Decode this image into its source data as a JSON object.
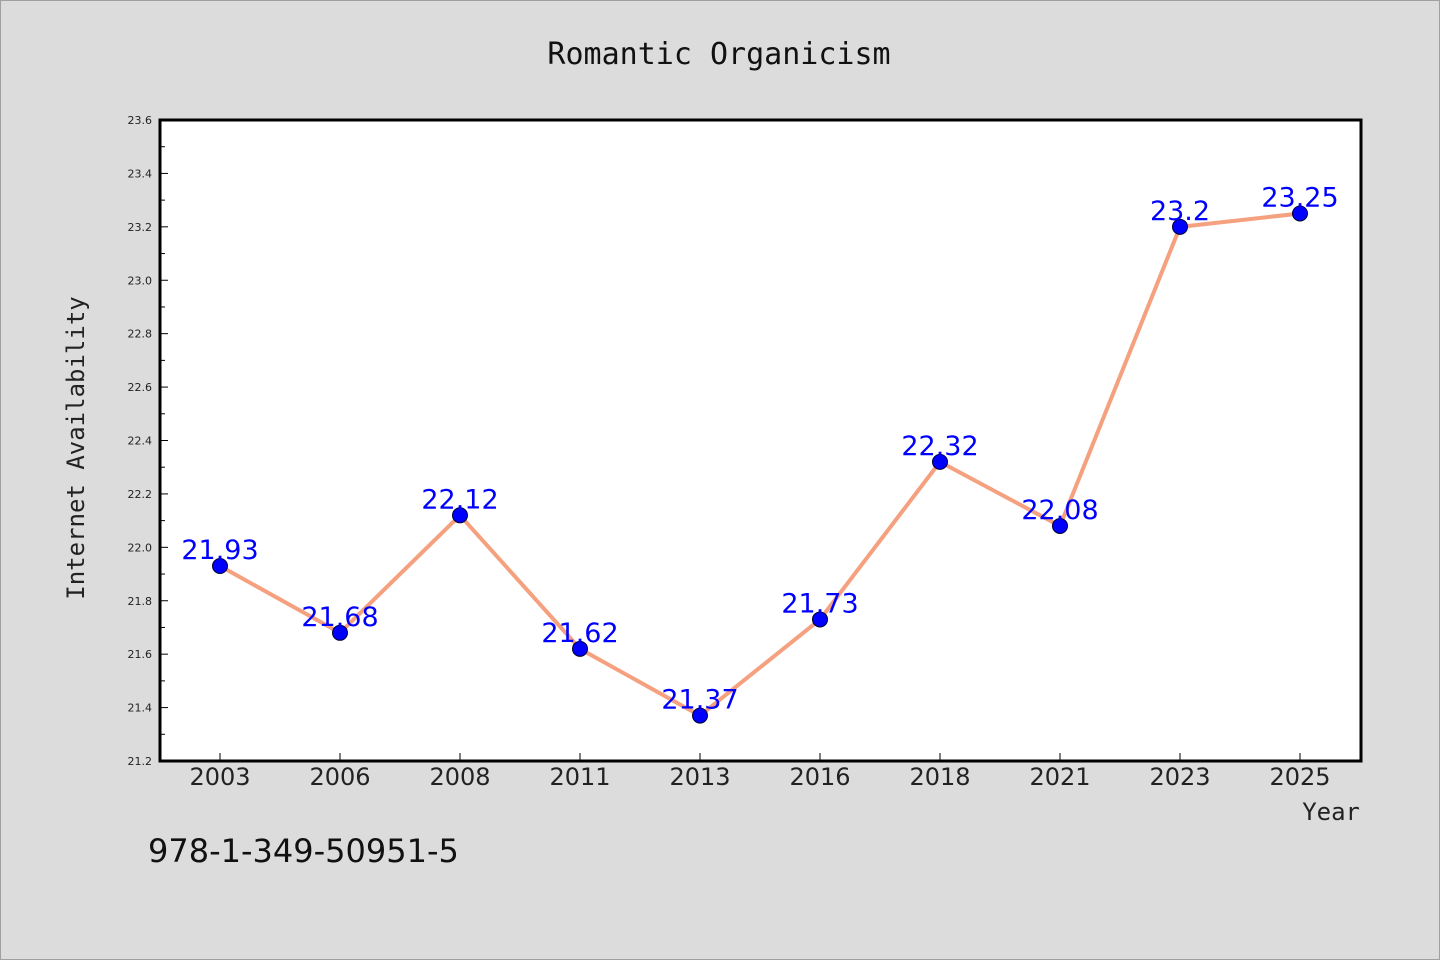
{
  "colors": {
    "background": "#dcdcdc",
    "plot_background": "#ffffff",
    "line": "#f5a07e",
    "marker": "#0000ff",
    "data_label": "#0000ff"
  },
  "chart_data": {
    "type": "line",
    "title": "Romantic Organicism",
    "xlabel": "Year",
    "ylabel": "Internet Availability",
    "categories": [
      "2003",
      "2006",
      "2008",
      "2011",
      "2013",
      "2016",
      "2018",
      "2021",
      "2023",
      "2025"
    ],
    "series": [
      {
        "values": [
          21.93,
          21.68,
          22.12,
          21.62,
          21.37,
          21.73,
          22.32,
          22.08,
          23.2,
          23.25
        ],
        "labels": [
          "21.93",
          "21.68",
          "22.12",
          "21.62",
          "21.37",
          "21.73",
          "22.32",
          "22.08",
          "23.2",
          "23.25"
        ]
      }
    ],
    "ylim": [
      21.2,
      23.6
    ],
    "yticks": [
      "21.2",
      "21.4",
      "21.6",
      "21.8",
      "22.0",
      "22.2",
      "22.4",
      "22.6",
      "22.8",
      "23.0",
      "23.2",
      "23.4",
      "23.6"
    ],
    "grid": false,
    "legend": "none"
  },
  "footer": {
    "isbn": "978-1-349-50951-5"
  }
}
